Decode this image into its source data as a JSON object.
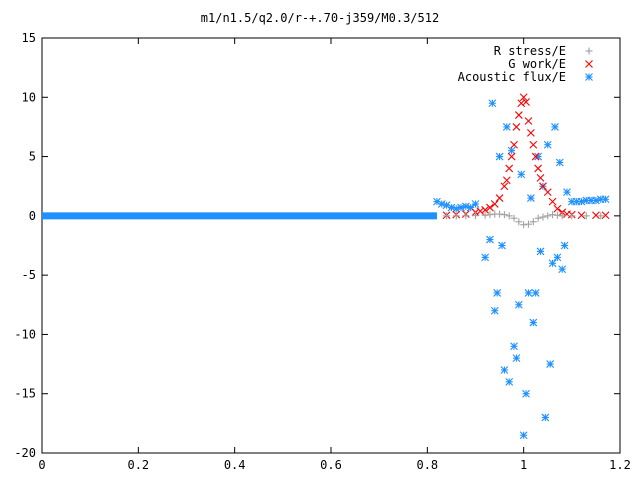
{
  "chart_data": {
    "type": "scatter",
    "title": "m1/n1.5/q2.0/r-+.70-j359/M0.3/512",
    "xlabel": "",
    "ylabel": "",
    "xlim": [
      0,
      1.2
    ],
    "ylim": [
      -20,
      15
    ],
    "xticks": [
      0,
      0.2,
      0.4,
      0.6,
      0.8,
      1,
      1.2
    ],
    "yticks": [
      -20,
      -15,
      -10,
      -5,
      0,
      5,
      10,
      15
    ],
    "xtick_labels": [
      "0",
      "0.2",
      "0.4",
      "0.6",
      "0.8",
      "1",
      "1.2"
    ],
    "ytick_labels": [
      "-20",
      "-15",
      "-10",
      "-5",
      "0",
      "5",
      "10",
      "15"
    ],
    "grid": false,
    "legend_position": "top-right",
    "series": [
      {
        "name": "R stress/E",
        "marker": "plus",
        "color": "#a0a0a0",
        "points": [
          [
            0.84,
            0.0
          ],
          [
            0.86,
            0.0
          ],
          [
            0.88,
            0.01
          ],
          [
            0.9,
            0.02
          ],
          [
            0.92,
            0.05
          ],
          [
            0.93,
            0.1
          ],
          [
            0.94,
            0.15
          ],
          [
            0.95,
            0.15
          ],
          [
            0.96,
            0.1
          ],
          [
            0.97,
            0.0
          ],
          [
            0.98,
            -0.2
          ],
          [
            0.99,
            -0.5
          ],
          [
            1.0,
            -0.75
          ],
          [
            1.01,
            -0.7
          ],
          [
            1.02,
            -0.5
          ],
          [
            1.03,
            -0.2
          ],
          [
            1.04,
            -0.1
          ],
          [
            1.05,
            0.0
          ],
          [
            1.06,
            0.1
          ],
          [
            1.07,
            0.05
          ],
          [
            1.08,
            0.0
          ],
          [
            1.1,
            0.0
          ],
          [
            1.13,
            0.0
          ],
          [
            1.16,
            0.0
          ]
        ]
      },
      {
        "name": "G work/E",
        "marker": "cross",
        "color": "#ff0000",
        "points": [
          [
            0.84,
            0.05
          ],
          [
            0.86,
            0.1
          ],
          [
            0.88,
            0.15
          ],
          [
            0.9,
            0.3
          ],
          [
            0.91,
            0.4
          ],
          [
            0.92,
            0.5
          ],
          [
            0.93,
            0.7
          ],
          [
            0.94,
            1.0
          ],
          [
            0.95,
            1.5
          ],
          [
            0.96,
            2.5
          ],
          [
            0.965,
            3.0
          ],
          [
            0.97,
            4.0
          ],
          [
            0.975,
            5.0
          ],
          [
            0.98,
            6.0
          ],
          [
            0.985,
            7.5
          ],
          [
            0.99,
            8.5
          ],
          [
            0.995,
            9.5
          ],
          [
            1.0,
            10.0
          ],
          [
            1.005,
            9.6
          ],
          [
            1.01,
            8.0
          ],
          [
            1.015,
            7.0
          ],
          [
            1.02,
            6.0
          ],
          [
            1.025,
            5.0
          ],
          [
            1.03,
            4.0
          ],
          [
            1.035,
            3.2
          ],
          [
            1.04,
            2.5
          ],
          [
            1.05,
            2.0
          ],
          [
            1.06,
            1.2
          ],
          [
            1.07,
            0.6
          ],
          [
            1.08,
            0.3
          ],
          [
            1.09,
            0.15
          ],
          [
            1.1,
            0.1
          ],
          [
            1.12,
            0.05
          ],
          [
            1.15,
            0.05
          ],
          [
            1.17,
            0.05
          ]
        ]
      },
      {
        "name": "Acoustic flux/E",
        "marker": "star",
        "color": "#1e90ff",
        "baseline": {
          "x_from": 0.0,
          "x_to": 0.82,
          "y": 0.0
        },
        "points": [
          [
            0.82,
            1.2
          ],
          [
            0.83,
            1.0
          ],
          [
            0.84,
            0.9
          ],
          [
            0.85,
            0.7
          ],
          [
            0.86,
            0.6
          ],
          [
            0.87,
            0.7
          ],
          [
            0.88,
            0.8
          ],
          [
            0.89,
            0.7
          ],
          [
            0.9,
            1.0
          ],
          [
            0.92,
            -3.5
          ],
          [
            0.93,
            -2.0
          ],
          [
            0.935,
            9.5
          ],
          [
            0.94,
            -8.0
          ],
          [
            0.945,
            -6.5
          ],
          [
            0.95,
            5.0
          ],
          [
            0.955,
            -2.5
          ],
          [
            0.96,
            -13.0
          ],
          [
            0.965,
            7.5
          ],
          [
            0.97,
            -14.0
          ],
          [
            0.975,
            5.5
          ],
          [
            0.98,
            -11.0
          ],
          [
            0.985,
            -12.0
          ],
          [
            0.99,
            -7.5
          ],
          [
            0.995,
            3.5
          ],
          [
            1.0,
            -18.5
          ],
          [
            1.005,
            -15.0
          ],
          [
            1.01,
            -6.5
          ],
          [
            1.015,
            1.5
          ],
          [
            1.02,
            -9.0
          ],
          [
            1.025,
            -6.5
          ],
          [
            1.03,
            5.0
          ],
          [
            1.035,
            -3.0
          ],
          [
            1.04,
            2.5
          ],
          [
            1.045,
            -17.0
          ],
          [
            1.05,
            6.0
          ],
          [
            1.055,
            -12.5
          ],
          [
            1.06,
            -4.0
          ],
          [
            1.065,
            7.5
          ],
          [
            1.07,
            -3.5
          ],
          [
            1.075,
            4.5
          ],
          [
            1.08,
            -4.5
          ],
          [
            1.085,
            -2.5
          ],
          [
            1.09,
            2.0
          ],
          [
            1.1,
            1.2
          ],
          [
            1.11,
            1.2
          ],
          [
            1.12,
            1.2
          ],
          [
            1.13,
            1.3
          ],
          [
            1.14,
            1.3
          ],
          [
            1.15,
            1.3
          ],
          [
            1.16,
            1.4
          ],
          [
            1.17,
            1.4
          ]
        ]
      }
    ]
  }
}
